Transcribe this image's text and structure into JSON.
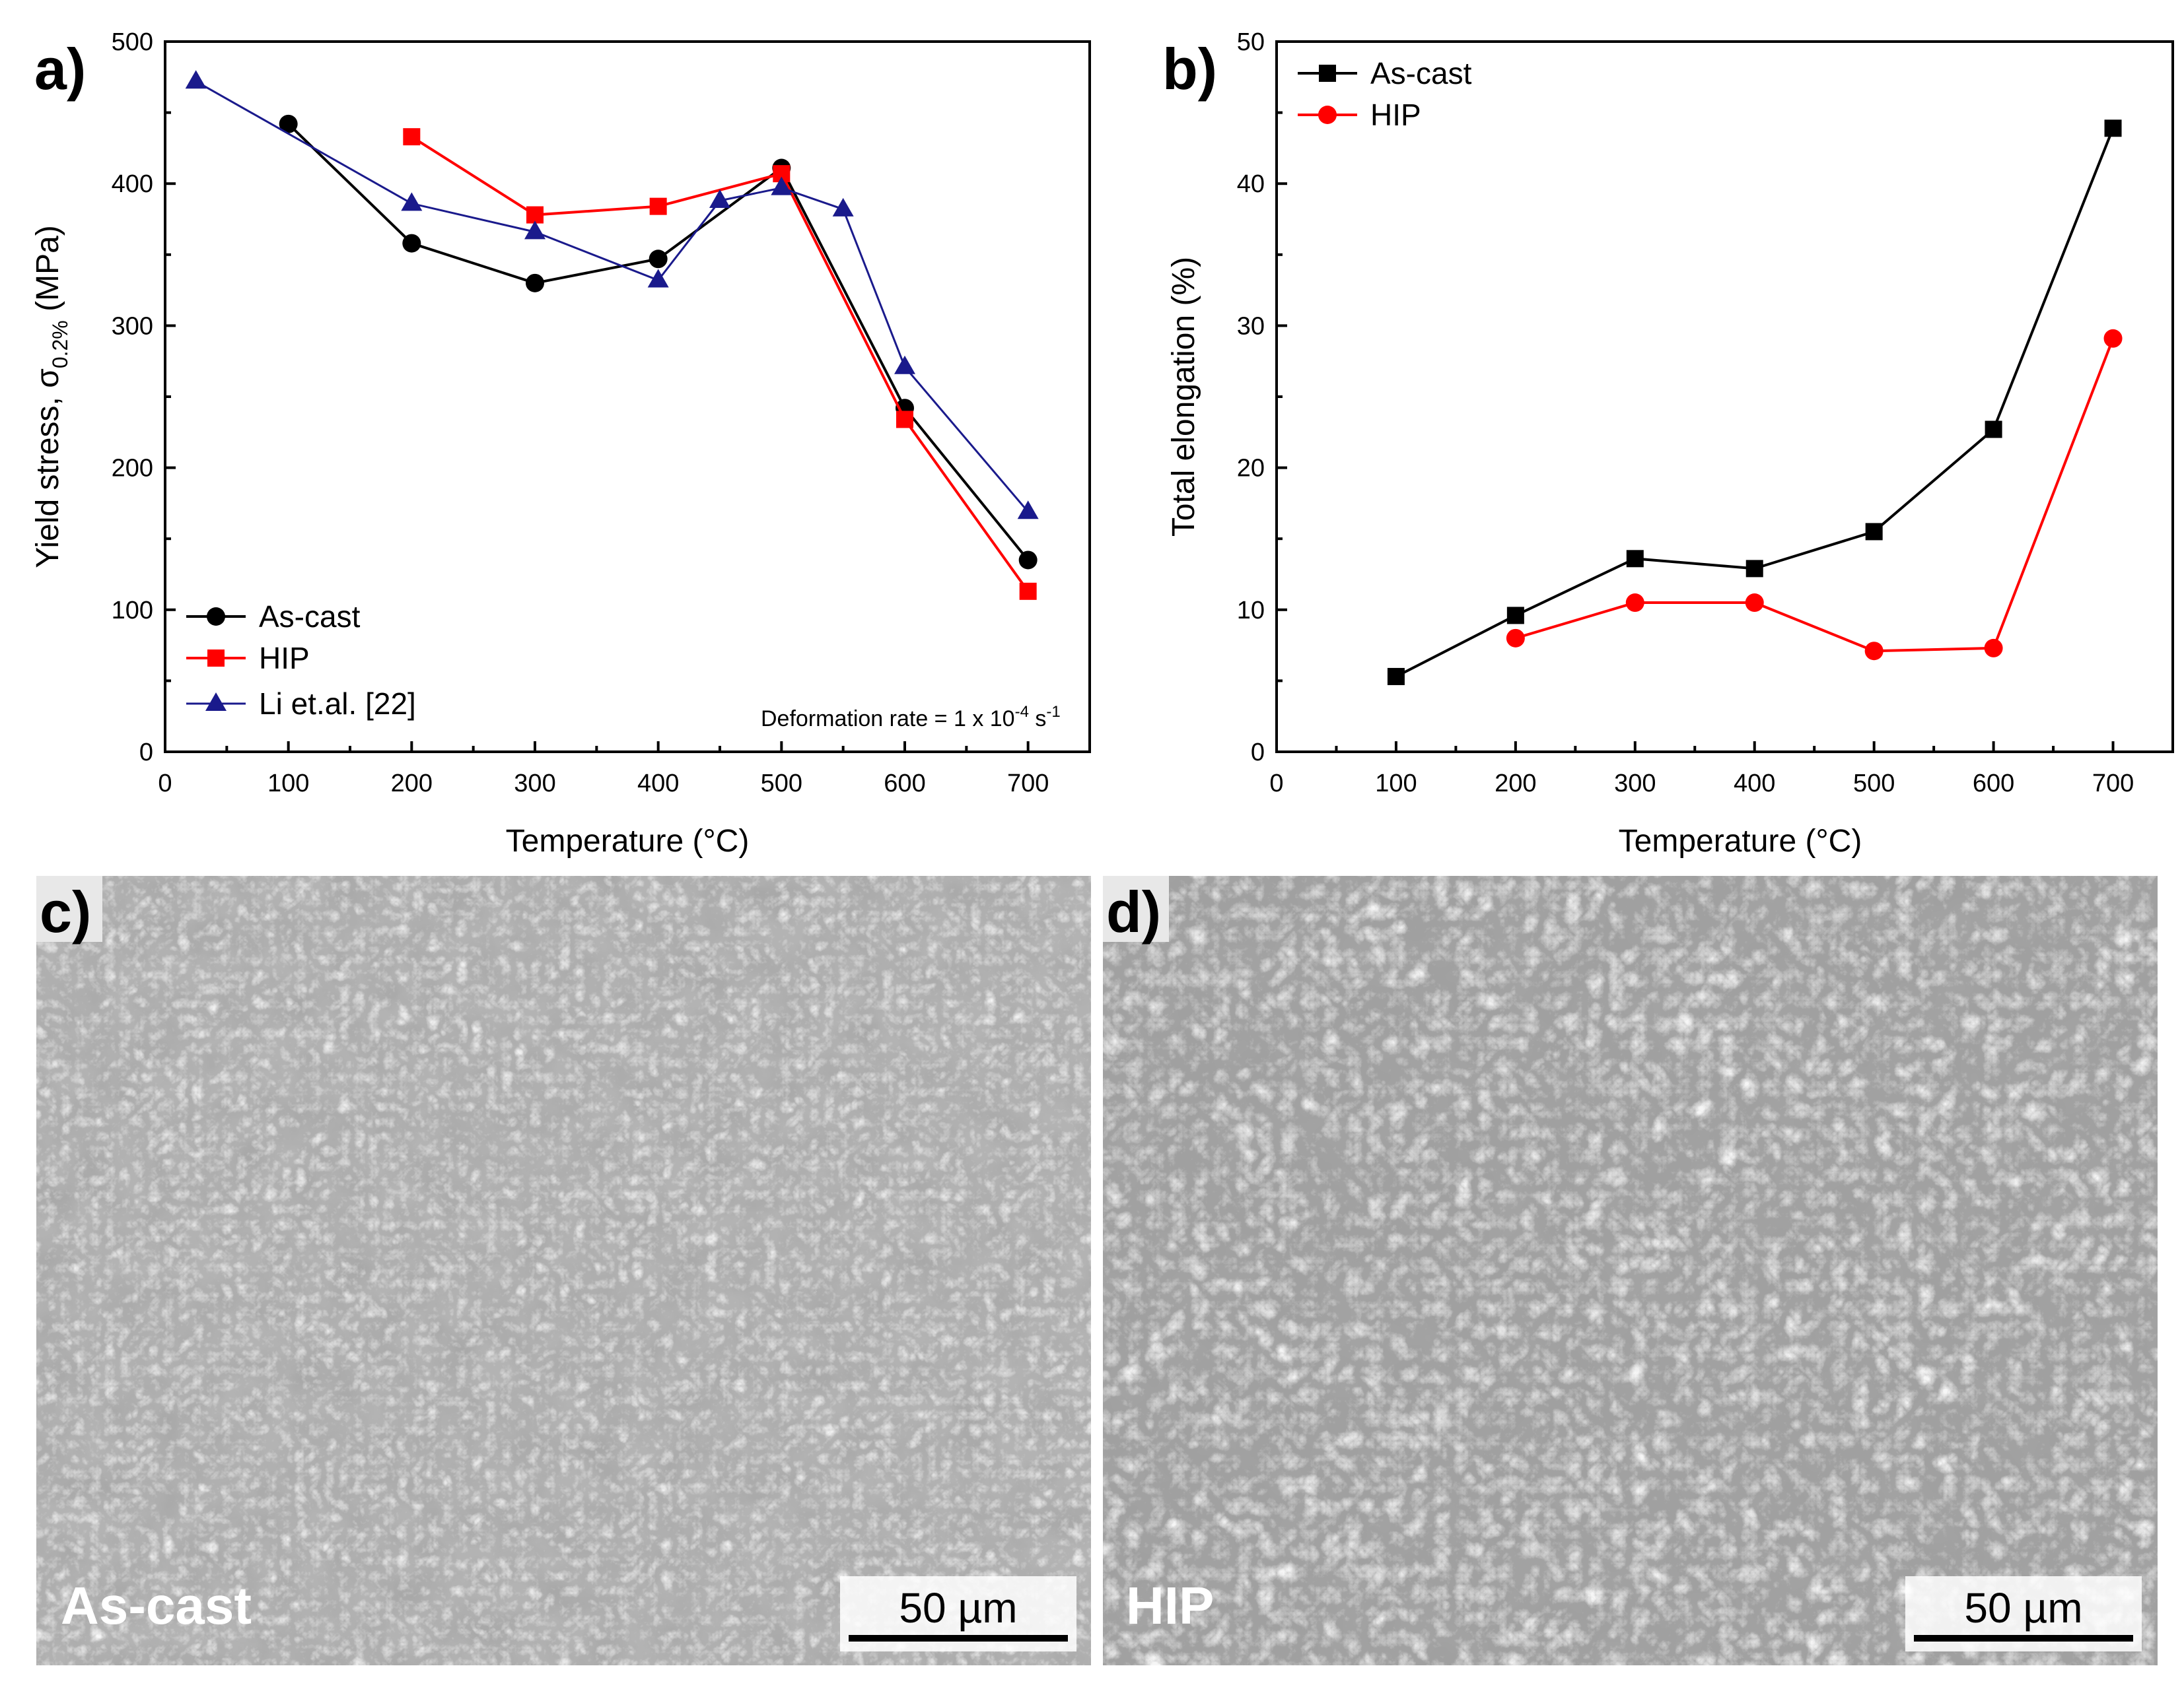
{
  "panels": {
    "a": "a)",
    "b": "b)",
    "c": "c)",
    "d": "d)"
  },
  "micrographs": {
    "c": {
      "label": "As-cast",
      "scale_bar": "50 µm"
    },
    "d": {
      "label": "HIP",
      "scale_bar": "50 µm"
    }
  },
  "chart_data": [
    {
      "type": "line",
      "panel": "a)",
      "xlabel_main": "Temperature (",
      "xlabel_degree": "°",
      "xlabel_unit": "C)",
      "ylabel_main": "Yield stress, σ",
      "ylabel_sub": "0.2%",
      "ylabel_unit": " (MPa)",
      "xlim": [
        0,
        750
      ],
      "ylim": [
        0,
        500
      ],
      "xticks": [
        0,
        100,
        200,
        300,
        400,
        500,
        600,
        700
      ],
      "yticks": [
        0,
        100,
        200,
        300,
        400,
        500
      ],
      "annotation": "Deformation rate = 1 x 10",
      "annotation_exp": "-4",
      "annotation_unit": " s",
      "annotation_unit_exp": "-1",
      "legend_position": "bottom-left",
      "series": [
        {
          "name": "As-cast",
          "color": "#000000",
          "marker": "circle",
          "x": [
            100,
            200,
            300,
            400,
            500,
            600,
            700
          ],
          "y": [
            442,
            358,
            330,
            347,
            411,
            242,
            135
          ]
        },
        {
          "name": "HIP",
          "color": "#ff0000",
          "marker": "square",
          "x": [
            200,
            300,
            400,
            500,
            600,
            700
          ],
          "y": [
            433,
            378,
            384,
            407,
            234,
            113
          ]
        },
        {
          "name": "Li et.al. [22]",
          "color": "#1a1a8c",
          "marker": "triangle",
          "x": [
            25,
            200,
            300,
            400,
            450,
            500,
            550,
            600,
            700
          ],
          "y": [
            472,
            386,
            366,
            332,
            388,
            397,
            382,
            271,
            169
          ]
        }
      ]
    },
    {
      "type": "line",
      "panel": "b)",
      "xlabel_main": "Temperature (",
      "xlabel_degree": "°",
      "xlabel_unit": "C)",
      "ylabel": "Total elongation (%)",
      "xlim": [
        0,
        750
      ],
      "ylim": [
        0,
        50
      ],
      "xticks": [
        0,
        100,
        200,
        300,
        400,
        500,
        600,
        700
      ],
      "yticks": [
        0,
        10,
        20,
        30,
        40,
        50
      ],
      "legend_position": "top-left",
      "series": [
        {
          "name": "As-cast",
          "color": "#000000",
          "marker": "square",
          "x": [
            100,
            200,
            300,
            400,
            500,
            600,
            700
          ],
          "y": [
            5.3,
            9.6,
            13.6,
            12.9,
            15.5,
            22.7,
            43.9
          ]
        },
        {
          "name": "HIP",
          "color": "#ff0000",
          "marker": "circle",
          "x": [
            200,
            300,
            400,
            500,
            600,
            700
          ],
          "y": [
            8.0,
            10.5,
            10.5,
            7.1,
            7.3,
            29.1
          ]
        }
      ]
    }
  ]
}
